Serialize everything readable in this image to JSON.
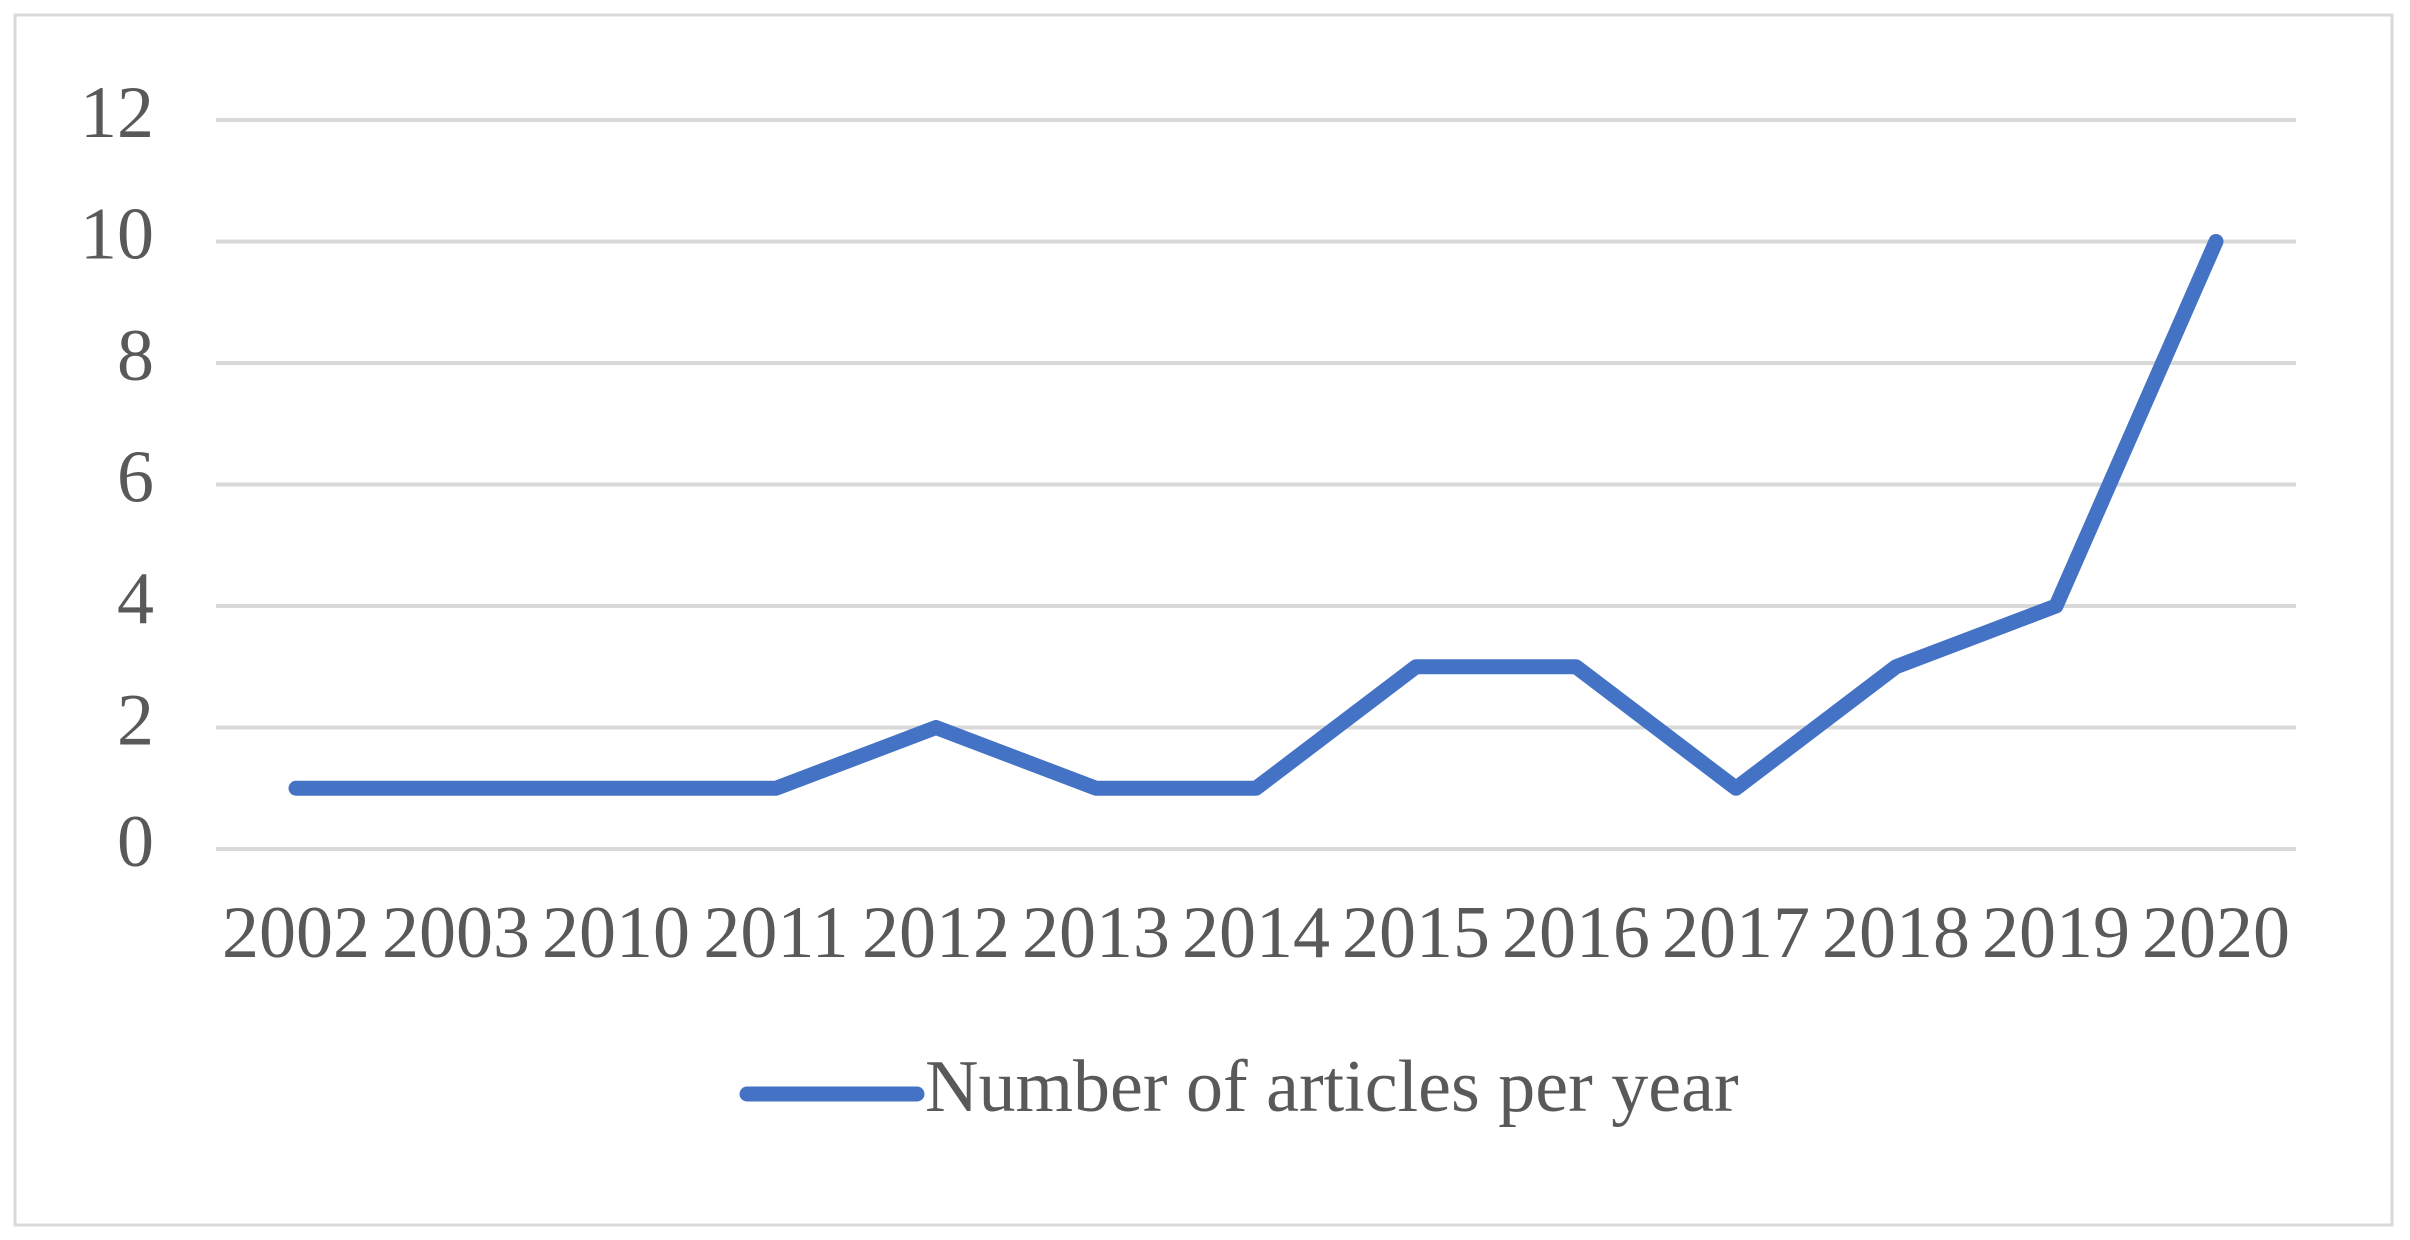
{
  "chart_data": {
    "type": "line",
    "categories": [
      "2002",
      "2003",
      "2010",
      "2011",
      "2012",
      "2013",
      "2014",
      "2015",
      "2016",
      "2017",
      "2018",
      "2019",
      "2020"
    ],
    "series": [
      {
        "name": "Number of articles per year",
        "color": "#4472c4",
        "values": [
          1,
          1,
          1,
          1,
          2,
          1,
          1,
          3,
          3,
          1,
          3,
          4,
          10
        ]
      }
    ],
    "ylim": [
      0,
      12
    ],
    "yticks": [
      0,
      2,
      4,
      6,
      8,
      10,
      12
    ],
    "grid": true,
    "legend": "bottom"
  }
}
